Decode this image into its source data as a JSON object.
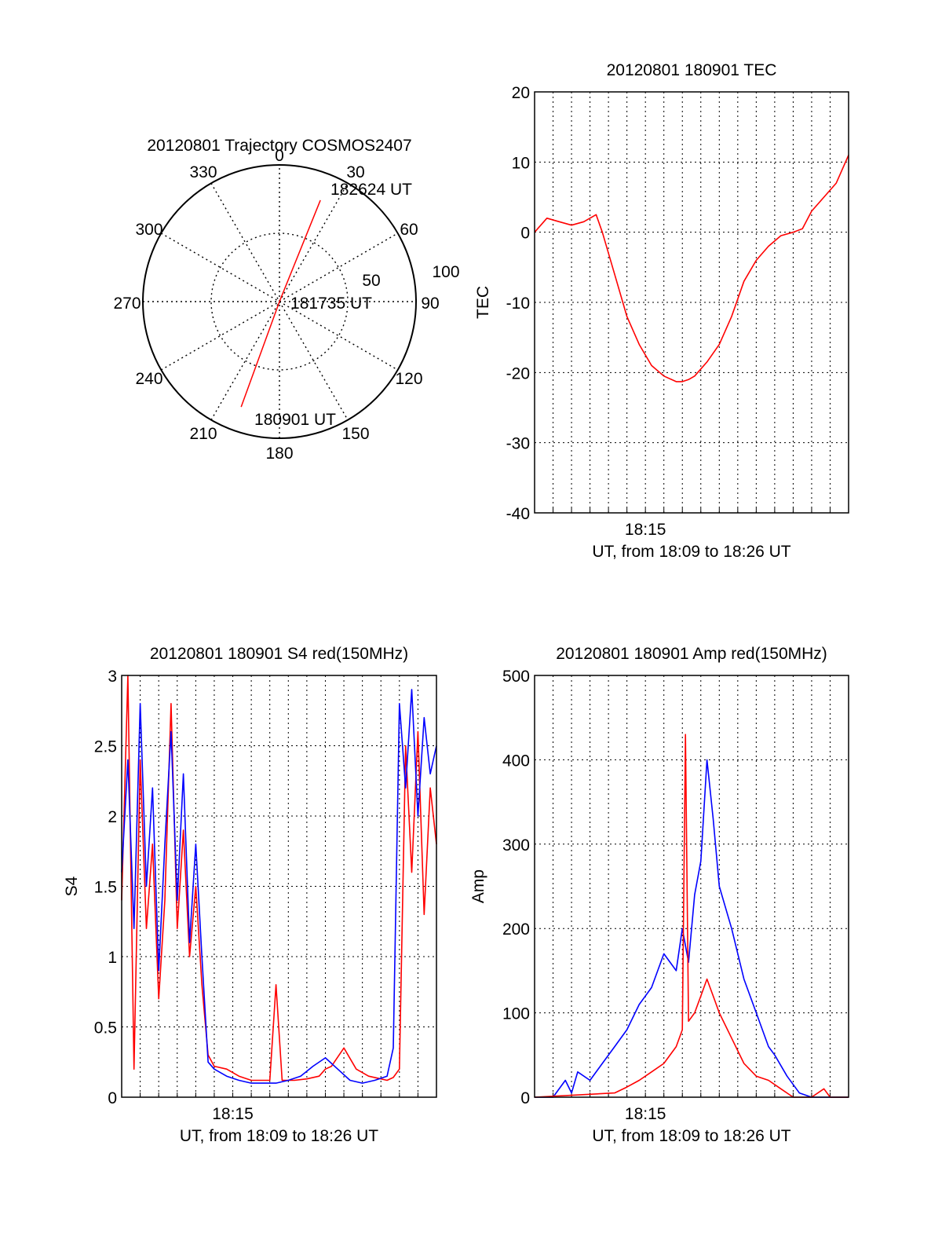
{
  "chart_data": [
    {
      "type": "polar",
      "title": "20120801 Trajectory COSMOS2407",
      "angle_ticks": [
        "0",
        "30",
        "60",
        "90",
        "120",
        "150",
        "180",
        "210",
        "240",
        "270",
        "300",
        "330"
      ],
      "radial_ticks": [
        "50",
        "100"
      ],
      "trajectory": {
        "color": "#ff0000",
        "points": [
          {
            "azimuth": 200,
            "zenith": 82
          },
          {
            "azimuth": 0,
            "zenith": 0
          },
          {
            "azimuth": 22,
            "zenith": 80
          }
        ]
      },
      "annotations": [
        "182624 UT",
        "181735 UT",
        "180901 UT"
      ]
    },
    {
      "type": "line",
      "title": "20120801 180901 TEC",
      "xlabel": "UT, from 18:09 to 18:26 UT",
      "ylabel": "TEC",
      "x_tick_labels": [
        "18:15"
      ],
      "ylim": [
        -40,
        20
      ],
      "y_ticks": [
        -40,
        -30,
        -20,
        -10,
        0,
        10,
        20
      ],
      "grid": true,
      "series": [
        {
          "color": "#ff0000",
          "x": [
            "18:09:00",
            "18:09:40",
            "18:10:20",
            "18:11:00",
            "18:11:40",
            "18:12:20",
            "18:12:40",
            "18:13:20",
            "18:14:00",
            "18:14:40",
            "18:15:20",
            "18:16:00",
            "18:16:40",
            "18:17:00",
            "18:17:20",
            "18:17:40",
            "18:18:20",
            "18:19:00",
            "18:19:40",
            "18:20:20",
            "18:21:00",
            "18:21:40",
            "18:22:20",
            "18:23:00",
            "18:23:30",
            "18:24:00",
            "18:24:40",
            "18:25:20",
            "18:26:00"
          ],
          "y": [
            0,
            2,
            1.5,
            1,
            1.5,
            2.5,
            0,
            -6,
            -12,
            -16,
            -19,
            -20.5,
            -21.3,
            -21.3,
            -21,
            -20.5,
            -18.5,
            -16,
            -12,
            -7,
            -4,
            -2,
            -0.5,
            0,
            0.5,
            3,
            5,
            7,
            11
          ]
        }
      ]
    },
    {
      "type": "line",
      "title": "20120801 180901 S4 red(150MHz)",
      "xlabel": "UT, from 18:09 to 18:26 UT",
      "ylabel": "S4",
      "x_tick_labels": [
        "18:15"
      ],
      "ylim": [
        0,
        3
      ],
      "y_tick_labels": [
        "0",
        "0.5",
        "1",
        "1.5",
        "2",
        "2.5",
        "3"
      ],
      "grid": true,
      "series": [
        {
          "color": "#ff0000",
          "x": [
            "18:09:00",
            "18:09:20",
            "18:09:40",
            "18:10:00",
            "18:10:20",
            "18:10:40",
            "18:11:00",
            "18:11:20",
            "18:11:40",
            "18:12:00",
            "18:12:20",
            "18:12:40",
            "18:13:00",
            "18:13:20",
            "18:13:40",
            "18:14:00",
            "18:14:40",
            "18:15:20",
            "18:16:00",
            "18:16:40",
            "18:17:00",
            "18:17:20",
            "18:17:40",
            "18:18:20",
            "18:19:00",
            "18:19:40",
            "18:20:00",
            "18:20:20",
            "18:21:00",
            "18:21:40",
            "18:22:20",
            "18:23:00",
            "18:23:20",
            "18:23:40",
            "18:24:00",
            "18:24:20",
            "18:24:40",
            "18:25:00",
            "18:25:20",
            "18:25:40",
            "18:26:00"
          ],
          "y": [
            1.4,
            3,
            0.2,
            2.4,
            1.2,
            1.8,
            0.7,
            1.4,
            2.8,
            1.2,
            1.9,
            1.0,
            1.5,
            0.8,
            0.3,
            0.22,
            0.2,
            0.15,
            0.12,
            0.12,
            0.12,
            0.8,
            0.12,
            0.12,
            0.13,
            0.15,
            0.2,
            0.22,
            0.35,
            0.2,
            0.15,
            0.13,
            0.12,
            0.14,
            0.2,
            2.5,
            1.6,
            2.6,
            1.3,
            2.2,
            1.8
          ]
        },
        {
          "color": "#0000ff",
          "x": [
            "18:09:00",
            "18:09:20",
            "18:09:40",
            "18:10:00",
            "18:10:20",
            "18:10:40",
            "18:11:00",
            "18:11:20",
            "18:11:40",
            "18:12:00",
            "18:12:20",
            "18:12:40",
            "18:13:00",
            "18:13:20",
            "18:13:40",
            "18:14:00",
            "18:14:40",
            "18:15:20",
            "18:16:00",
            "18:16:40",
            "18:17:20",
            "18:18:00",
            "18:18:40",
            "18:19:20",
            "18:20:00",
            "18:20:40",
            "18:21:20",
            "18:22:00",
            "18:22:40",
            "18:23:20",
            "18:23:40",
            "18:24:00",
            "18:24:20",
            "18:24:40",
            "18:25:00",
            "18:25:20",
            "18:25:40",
            "18:26:00"
          ],
          "y": [
            1.6,
            2.4,
            1.2,
            2.8,
            1.5,
            2.2,
            0.9,
            1.8,
            2.6,
            1.4,
            2.3,
            1.1,
            1.8,
            1.0,
            0.25,
            0.2,
            0.15,
            0.12,
            0.1,
            0.1,
            0.1,
            0.12,
            0.15,
            0.22,
            0.28,
            0.2,
            0.12,
            0.1,
            0.12,
            0.15,
            0.35,
            2.8,
            2.2,
            2.9,
            2.0,
            2.7,
            2.3,
            2.5
          ]
        }
      ]
    },
    {
      "type": "line",
      "title": "20120801 180901 Amp red(150MHz)",
      "xlabel": "UT, from 18:09 to 18:26 UT",
      "ylabel": "Amp",
      "x_tick_labels": [
        "18:15"
      ],
      "ylim": [
        0,
        500
      ],
      "y_ticks": [
        0,
        100,
        200,
        300,
        400,
        500
      ],
      "grid": true,
      "series": [
        {
          "color": "#0000ff",
          "x": [
            "18:09:00",
            "18:10:00",
            "18:10:40",
            "18:11:00",
            "18:11:20",
            "18:12:00",
            "18:12:40",
            "18:13:20",
            "18:14:00",
            "18:14:40",
            "18:15:20",
            "18:16:00",
            "18:16:40",
            "18:17:00",
            "18:17:20",
            "18:17:40",
            "18:18:00",
            "18:18:20",
            "18:18:40",
            "18:19:00",
            "18:19:40",
            "18:20:20",
            "18:21:00",
            "18:21:40",
            "18:22:00",
            "18:22:40",
            "18:23:20",
            "18:24:00",
            "18:24:40",
            "18:25:20",
            "18:26:00"
          ],
          "y": [
            0,
            0,
            20,
            5,
            30,
            20,
            40,
            60,
            80,
            110,
            130,
            170,
            150,
            200,
            160,
            240,
            280,
            400,
            330,
            250,
            200,
            140,
            100,
            60,
            50,
            25,
            5,
            0,
            0,
            0,
            0
          ]
        },
        {
          "color": "#ff0000",
          "x": [
            "18:09:00",
            "18:13:20",
            "18:14:00",
            "18:14:40",
            "18:15:20",
            "18:16:00",
            "18:16:40",
            "18:17:00",
            "18:17:10",
            "18:17:20",
            "18:17:40",
            "18:18:00",
            "18:18:20",
            "18:18:40",
            "18:19:00",
            "18:19:40",
            "18:20:20",
            "18:21:00",
            "18:21:40",
            "18:22:20",
            "18:23:00",
            "18:24:00",
            "18:24:40",
            "18:25:00",
            "18:26:00"
          ],
          "y": [
            0,
            5,
            12,
            20,
            30,
            40,
            60,
            80,
            430,
            90,
            100,
            120,
            140,
            120,
            100,
            70,
            40,
            25,
            20,
            10,
            0,
            0,
            10,
            0,
            0
          ]
        }
      ]
    }
  ]
}
